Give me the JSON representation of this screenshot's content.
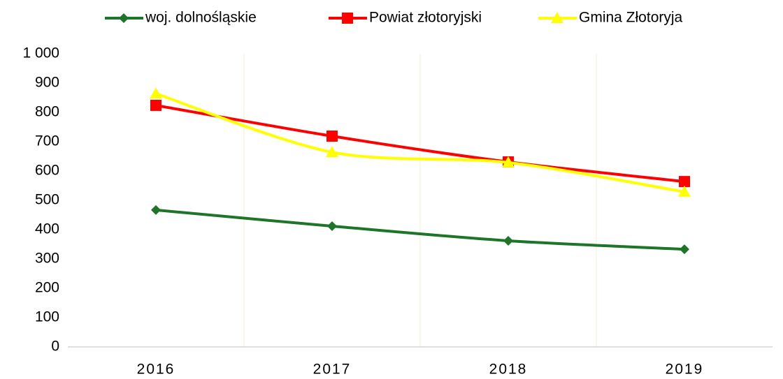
{
  "chart_data": {
    "type": "line",
    "categories": [
      "2016",
      "2017",
      "2018",
      "2019"
    ],
    "series": [
      {
        "name": "woj. dolnośląskie",
        "color": "#1e7428",
        "marker": "diamond",
        "values": [
          467,
          412,
          362,
          333
        ]
      },
      {
        "name": "Powiat złotoryjski",
        "color": "#ff0000",
        "marker": "square",
        "values": [
          824,
          719,
          631,
          564
        ]
      },
      {
        "name": "Gmina Złotoryja",
        "color": "#ffff00",
        "marker": "triangle",
        "values": [
          864,
          664,
          629,
          529
        ]
      }
    ],
    "ylim": [
      0,
      1000
    ],
    "yticks": [
      0,
      100,
      200,
      300,
      400,
      500,
      600,
      700,
      800,
      900,
      {
        "value": 1000,
        "label": "1 000"
      }
    ],
    "grid": true,
    "legend": "top"
  }
}
